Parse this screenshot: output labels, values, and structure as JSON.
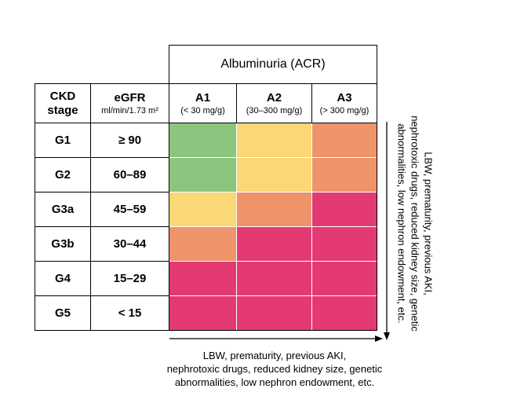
{
  "albuminuria_header": "Albuminuria (ACR)",
  "stage_header": {
    "line1": "CKD",
    "line2": "stage"
  },
  "egfr_header": {
    "label": "eGFR",
    "unit": "ml/min/1.73 m²"
  },
  "acr_columns": [
    {
      "label": "A1",
      "range": "(< 30 mg/g)"
    },
    {
      "label": "A2",
      "range": "(30–300 mg/g)"
    },
    {
      "label": "A3",
      "range": "(> 300 mg/g)"
    }
  ],
  "rows": [
    {
      "stage": "G1",
      "egfr": "≥ 90",
      "risk": [
        "green",
        "yellow",
        "orange"
      ]
    },
    {
      "stage": "G2",
      "egfr": "60–89",
      "risk": [
        "green",
        "yellow",
        "orange"
      ]
    },
    {
      "stage": "G3a",
      "egfr": "45–59",
      "risk": [
        "yellow",
        "orange",
        "red"
      ]
    },
    {
      "stage": "G3b",
      "egfr": "30–44",
      "risk": [
        "orange",
        "red",
        "red"
      ]
    },
    {
      "stage": "G4",
      "egfr": "15–29",
      "risk": [
        "red",
        "red",
        "red"
      ]
    },
    {
      "stage": "G5",
      "egfr": "< 15",
      "risk": [
        "red",
        "red",
        "red"
      ]
    }
  ],
  "risk_colors": {
    "green": "#8cc57e",
    "yellow": "#fbd775",
    "orange": "#ef936a",
    "red": "#e33a73"
  },
  "bottom_caption": {
    "line1": "LBW, prematurity, previous AKI,",
    "line2": "nephrotoxic drugs, reduced kidney size, genetic",
    "line3": "abnormalities, low nephron endowment, etc."
  },
  "side_caption": {
    "line1": "LBW, prematurity, previous AKI,",
    "line2": "nephrotoxic drugs, reduced kidney size, genetic",
    "line3": "abnormalities, low nephron endowment, etc."
  }
}
